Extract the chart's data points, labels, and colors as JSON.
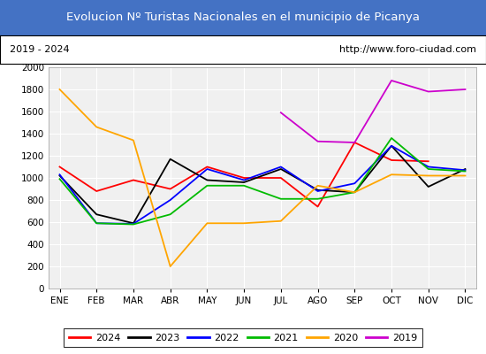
{
  "title": "Evolucion Nº Turistas Nacionales en el municipio de Picanya",
  "subtitle_left": "2019 - 2024",
  "subtitle_right": "http://www.foro-ciudad.com",
  "months": [
    "ENE",
    "FEB",
    "MAR",
    "ABR",
    "MAY",
    "JUN",
    "JUL",
    "AGO",
    "SEP",
    "OCT",
    "NOV",
    "DIC"
  ],
  "ylim": [
    0,
    2000
  ],
  "yticks": [
    0,
    200,
    400,
    600,
    800,
    1000,
    1200,
    1400,
    1600,
    1800,
    2000
  ],
  "series": {
    "2024": {
      "color": "#ff0000",
      "values": [
        1100,
        880,
        980,
        900,
        1100,
        1000,
        1000,
        740,
        1320,
        1160,
        1150,
        null
      ]
    },
    "2023": {
      "color": "#000000",
      "values": [
        1020,
        670,
        590,
        1170,
        980,
        960,
        1080,
        890,
        870,
        1290,
        920,
        1080
      ]
    },
    "2022": {
      "color": "#0000ff",
      "values": [
        1030,
        590,
        585,
        800,
        1080,
        980,
        1100,
        880,
        950,
        1290,
        1100,
        1070
      ]
    },
    "2021": {
      "color": "#00bb00",
      "values": [
        990,
        590,
        580,
        670,
        930,
        930,
        810,
        810,
        870,
        1360,
        1080,
        1060
      ]
    },
    "2020": {
      "color": "#ffa500",
      "values": [
        1800,
        1460,
        1340,
        200,
        590,
        590,
        610,
        930,
        870,
        1030,
        1020,
        1020
      ]
    },
    "2019": {
      "color": "#cc00cc",
      "values": [
        null,
        null,
        null,
        null,
        null,
        null,
        1590,
        1330,
        1320,
        1880,
        1780,
        1800
      ]
    }
  },
  "legend_order": [
    "2024",
    "2023",
    "2022",
    "2021",
    "2020",
    "2019"
  ],
  "title_bg_color": "#4472c4",
  "title_text_color": "#ffffff",
  "plot_bg_color": "#f0f0f0",
  "grid_color": "#ffffff"
}
